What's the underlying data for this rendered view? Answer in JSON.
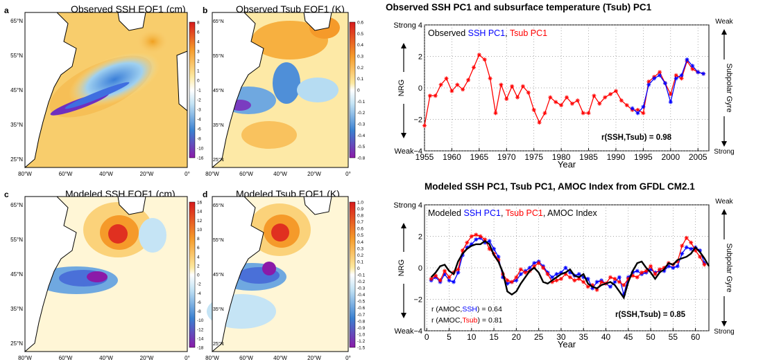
{
  "maps": [
    {
      "id": "a",
      "label": "a",
      "title": "Observed SSH EOF1 (cm)",
      "colorbar": {
        "ticks": [
          "8",
          "6",
          "4",
          "3",
          "2",
          "1",
          "0",
          "-1",
          "-2",
          "-3",
          "-4",
          "-6",
          "-8",
          "-10",
          "-16"
        ]
      }
    },
    {
      "id": "b",
      "label": "b",
      "title": "Observed Tsub EOF1 (K)",
      "colorbar": {
        "ticks": [
          "0.6",
          "0.5",
          "0.4",
          "0.3",
          "0.2",
          "0.1",
          "0",
          "-0.1",
          "-0.2",
          "-0.3",
          "-0.4",
          "-0.5",
          "-0.8"
        ]
      }
    },
    {
      "id": "c",
      "label": "c",
      "title": "Modeled SSH EOF1 (cm)",
      "colorbar": {
        "ticks": [
          "16",
          "14",
          "12",
          "10",
          "8",
          "6",
          "4",
          "2",
          "0",
          "-2",
          "-4",
          "-6",
          "-8",
          "-10",
          "-12",
          "-14",
          "-18"
        ]
      }
    },
    {
      "id": "d",
      "label": "d",
      "title": "Modeled Tsub EOF1 (K)",
      "colorbar": {
        "ticks": [
          "1.0",
          "0.9",
          "0.8",
          "0.7",
          "0.6",
          "0.5",
          "0.4",
          "0.3",
          "0.2",
          "0.1",
          "0",
          "-0.1",
          "-0.2",
          "-0.3",
          "-0.4",
          "-0.5",
          "-0.6",
          "-0.7",
          "-0.8",
          "-0.9",
          "-1.0",
          "-1.2",
          "-1.5"
        ]
      }
    }
  ],
  "map_axes": {
    "lat_labels": [
      "65°N",
      "55°N",
      "45°N",
      "35°N",
      "25°N"
    ],
    "lon_labels": [
      "80°W",
      "60°W",
      "40°W",
      "20°W",
      "0°"
    ]
  },
  "chart_data": [
    {
      "type": "line",
      "title": "Observed SSH PC1 and subsurface temperature (Tsub) PC1",
      "legend_prefix": "Observed",
      "legend_ssh": "SSH PC1",
      "legend_sep": ",",
      "legend_tsub": "Tsub PC1",
      "xlabel": "Year",
      "ylabel": "NRG",
      "xlim": [
        1955,
        2007
      ],
      "ylim": [
        -4,
        4
      ],
      "xticks": [
        1955,
        1960,
        1965,
        1970,
        1975,
        1980,
        1985,
        1990,
        1995,
        2000,
        2005
      ],
      "yticks": [
        -4,
        -2,
        0,
        2,
        4
      ],
      "ytick_labels": [
        "Weak−4",
        "−2",
        "0",
        "2",
        "Strong 4"
      ],
      "right_top": "Weak",
      "right_bottom": "Strong",
      "right_label": "Subpolar Gyre",
      "annotation": "r(SSH,Tsub) = 0.98",
      "series": [
        {
          "name": "Tsub PC1",
          "color": "#ff0000",
          "x": [
            1955,
            1956,
            1957,
            1958,
            1959,
            1960,
            1961,
            1962,
            1963,
            1964,
            1965,
            1966,
            1967,
            1968,
            1969,
            1970,
            1971,
            1972,
            1973,
            1974,
            1975,
            1976,
            1977,
            1978,
            1979,
            1980,
            1981,
            1982,
            1983,
            1984,
            1985,
            1986,
            1987,
            1988,
            1989,
            1990,
            1991,
            1992,
            1993,
            1994,
            1995,
            1996,
            1997,
            1998,
            1999,
            2000,
            2001,
            2002,
            2003,
            2004,
            2005,
            2006
          ],
          "y": [
            -2.4,
            -0.5,
            -0.5,
            0.2,
            0.6,
            -0.2,
            0.2,
            -0.1,
            0.5,
            1.3,
            2.1,
            1.8,
            0.6,
            -1.6,
            0.2,
            -0.7,
            0.1,
            -0.6,
            0.1,
            -0.3,
            -1.4,
            -2.2,
            -1.6,
            -0.6,
            -0.9,
            -1.1,
            -0.6,
            -1.0,
            -0.8,
            -1.6,
            -1.6,
            -0.5,
            -1.0,
            -0.6,
            -0.4,
            -0.2,
            -0.8,
            -1.1,
            -1.4,
            -1.4,
            -1.6,
            0.4,
            0.7,
            1.0,
            0.3,
            -0.4,
            0.8,
            0.6,
            1.7,
            1.2,
            1.0,
            0.9
          ]
        },
        {
          "name": "SSH PC1",
          "color": "#0000ff",
          "x": [
            1993,
            1994,
            1995,
            1996,
            1997,
            1998,
            1999,
            2000,
            2001,
            2002,
            2003,
            2004,
            2005,
            2006
          ],
          "y": [
            -1.3,
            -1.6,
            -1.2,
            0.2,
            0.6,
            0.8,
            0.3,
            -0.9,
            0.6,
            0.8,
            1.8,
            1.4,
            1.0,
            0.9
          ]
        }
      ]
    },
    {
      "type": "line",
      "title": "Modeled SSH PC1, Tsub PC1, AMOC Index from GFDL CM2.1",
      "legend_prefix": "Modeled",
      "legend_ssh": "SSH PC1",
      "legend_sep1": ",",
      "legend_tsub": "Tsub PC1",
      "legend_sep2": ",",
      "legend_amoc": "AMOC Index",
      "xlabel": "Year",
      "ylabel": "NRG",
      "xlim": [
        -0.5,
        63
      ],
      "ylim": [
        -4,
        4
      ],
      "xticks": [
        0,
        5,
        10,
        15,
        20,
        25,
        30,
        35,
        40,
        45,
        50,
        55,
        60
      ],
      "yticks": [
        -4,
        -2,
        0,
        2,
        4
      ],
      "ytick_labels": [
        "Weak−4",
        "−2",
        "0",
        "2",
        "Strong 4"
      ],
      "right_top": "Weak",
      "right_bottom": "Strong",
      "right_label": "Subpolar Gyre",
      "annotation": "r(SSH,Tsub) = 0.85",
      "r_amoc_ssh_pre": "r (AMOC,",
      "r_amoc_ssh_var": "SSH",
      "r_amoc_ssh_post": ") = 0.64",
      "r_amoc_tsub_pre": "r (AMOC,",
      "r_amoc_tsub_var": "Tsub",
      "r_amoc_tsub_post": ") = 0.81",
      "series": [
        {
          "name": "SSH PC1",
          "color": "#0000ff",
          "x": [
            1,
            2,
            3,
            4,
            5,
            6,
            7,
            8,
            9,
            10,
            11,
            12,
            13,
            14,
            15,
            16,
            17,
            18,
            19,
            20,
            21,
            22,
            23,
            24,
            25,
            26,
            27,
            28,
            29,
            30,
            31,
            32,
            33,
            34,
            35,
            36,
            37,
            38,
            39,
            40,
            41,
            42,
            43,
            44,
            45,
            46,
            47,
            48,
            49,
            50,
            51,
            52,
            53,
            54,
            55,
            56,
            57,
            58,
            59,
            60,
            61,
            62
          ],
          "y": [
            -0.8,
            -0.6,
            -0.9,
            -0.4,
            -0.8,
            -0.9,
            -0.3,
            0.8,
            1.3,
            1.5,
            1.8,
            1.9,
            1.6,
            1.7,
            1.2,
            0.7,
            -0.6,
            -1.0,
            -0.9,
            -0.8,
            -0.4,
            -0.2,
            0.0,
            0.3,
            0.4,
            0.1,
            -0.3,
            -0.6,
            -0.4,
            -0.3,
            0.0,
            -0.3,
            -0.5,
            -0.4,
            -0.6,
            -0.7,
            -1.3,
            -0.9,
            -0.8,
            -1.0,
            -1.2,
            -0.9,
            -0.6,
            -1.7,
            -0.6,
            -0.3,
            -0.2,
            -0.4,
            -0.3,
            -0.1,
            -0.3,
            -0.2,
            -0.2,
            0.1,
            0.0,
            0.1,
            0.9,
            1.3,
            1.2,
            1.3,
            1.1,
            0.3
          ]
        },
        {
          "name": "Tsub PC1",
          "color": "#ff0000",
          "x": [
            1,
            2,
            3,
            4,
            5,
            6,
            7,
            8,
            9,
            10,
            11,
            12,
            13,
            14,
            15,
            16,
            17,
            18,
            19,
            20,
            21,
            22,
            23,
            24,
            25,
            26,
            27,
            28,
            29,
            30,
            31,
            32,
            33,
            34,
            35,
            36,
            37,
            38,
            39,
            40,
            41,
            42,
            43,
            44,
            45,
            46,
            47,
            48,
            49,
            50,
            51,
            52,
            53,
            54,
            55,
            56,
            57,
            58,
            59,
            60,
            61,
            62
          ],
          "y": [
            -0.7,
            -0.5,
            -0.8,
            -0.2,
            -0.6,
            -0.3,
            -0.1,
            1.1,
            1.6,
            2.0,
            2.1,
            2.0,
            1.8,
            1.2,
            0.9,
            0.5,
            -0.4,
            -0.8,
            -0.9,
            -0.6,
            -0.1,
            -0.3,
            -0.2,
            0.1,
            0.3,
            0.0,
            -0.4,
            -0.9,
            -0.8,
            -0.7,
            -0.4,
            -0.6,
            -0.8,
            -0.7,
            -0.9,
            -1.2,
            -1.1,
            -1.4,
            -0.9,
            -1.0,
            -0.6,
            -0.7,
            -0.9,
            -1.1,
            -0.7,
            -0.5,
            -0.6,
            -0.3,
            -0.2,
            0.1,
            -0.4,
            -0.1,
            0.0,
            0.3,
            0.2,
            0.4,
            1.4,
            1.9,
            1.6,
            1.1,
            0.7,
            0.2
          ]
        },
        {
          "name": "AMOC Index",
          "color": "#000000",
          "x": [
            1,
            2,
            3,
            4,
            5,
            6,
            7,
            8,
            9,
            10,
            11,
            12,
            13,
            14,
            15,
            16,
            17,
            18,
            19,
            20,
            21,
            22,
            23,
            24,
            25,
            26,
            27,
            28,
            29,
            30,
            31,
            32,
            33,
            34,
            35,
            36,
            37,
            38,
            39,
            40,
            41,
            42,
            43,
            44,
            45,
            46,
            47,
            48,
            49,
            50,
            51,
            52,
            53,
            54,
            55,
            56,
            57,
            58,
            59,
            60,
            61,
            62,
            63
          ],
          "y": [
            -0.6,
            -0.3,
            0.1,
            0.2,
            -0.2,
            -0.4,
            0.4,
            0.9,
            1.2,
            1.4,
            1.5,
            1.5,
            1.7,
            1.5,
            0.8,
            0.4,
            -0.3,
            -1.5,
            -1.7,
            -1.5,
            -1.0,
            -0.6,
            -0.2,
            0.0,
            -0.3,
            -0.9,
            -1.0,
            -0.8,
            -0.6,
            -0.4,
            -0.3,
            -0.1,
            -0.5,
            -0.6,
            -0.4,
            -1.0,
            -1.2,
            -1.3,
            -1.1,
            -1.0,
            -0.9,
            -1.1,
            -1.5,
            -1.9,
            -0.9,
            -0.2,
            0.3,
            0.4,
            0.0,
            -0.3,
            -0.7,
            -0.3,
            -0.1,
            0.3,
            0.2,
            0.5,
            0.6,
            0.7,
            0.9,
            1.3,
            1.0,
            0.6,
            0.1
          ]
        }
      ]
    }
  ]
}
